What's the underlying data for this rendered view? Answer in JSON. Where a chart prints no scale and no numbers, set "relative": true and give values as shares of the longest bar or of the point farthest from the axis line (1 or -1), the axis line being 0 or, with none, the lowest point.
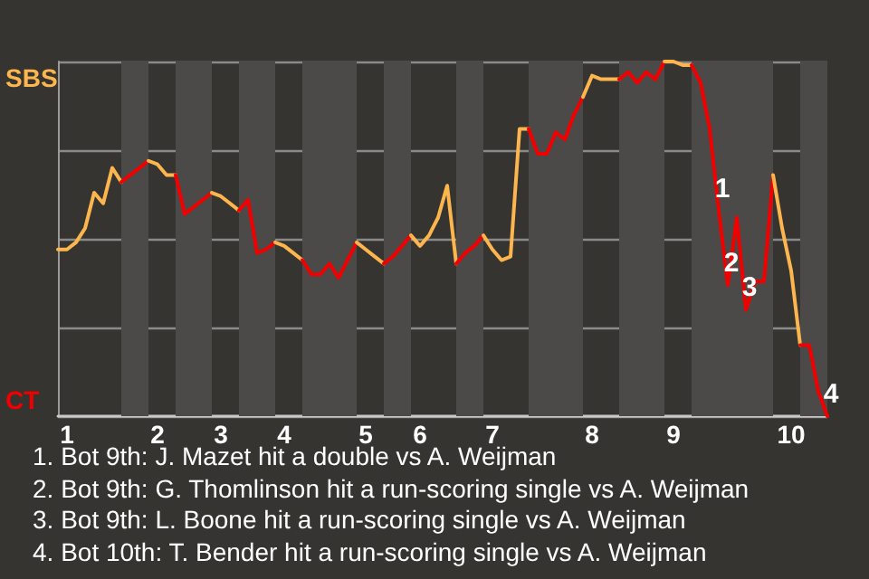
{
  "chart_data": {
    "type": "line",
    "relative": true,
    "categories": [
      null,
      "1",
      null,
      null,
      null,
      null,
      null,
      null,
      null,
      null,
      null,
      "2",
      null,
      null,
      null,
      null,
      null,
      null,
      "3",
      null,
      null,
      null,
      null,
      null,
      null,
      "4",
      null,
      null,
      null,
      null,
      null,
      null,
      null,
      null,
      "5",
      null,
      null,
      null,
      null,
      null,
      "6",
      null,
      null,
      null,
      null,
      null,
      null,
      null,
      "7",
      null,
      null,
      null,
      null,
      null,
      null,
      null,
      null,
      null,
      null,
      "8",
      null,
      null,
      null,
      null,
      null,
      null,
      null,
      null,
      "9",
      null,
      null,
      null,
      null,
      null,
      null,
      null,
      null,
      null,
      null,
      null,
      null,
      "10",
      null,
      null,
      null,
      null
    ],
    "grid": "y",
    "marker": "none",
    "series": [
      {
        "name": "SBS",
        "color": "#fdb54e",
        "values": [
          0.47,
          0.47,
          0.49,
          0.53,
          0.63,
          0.6,
          0.7,
          0.66,
          null,
          null,
          null,
          null,
          null,
          null,
          null,
          null,
          null,
          null,
          null,
          null,
          null,
          null,
          null,
          null,
          null,
          null,
          null,
          null,
          null,
          null,
          null,
          null,
          null,
          null,
          null,
          null,
          null,
          null,
          null,
          null,
          null,
          null,
          null,
          null,
          null,
          null,
          null,
          null,
          null,
          null,
          null,
          null,
          null,
          null,
          null,
          null,
          null,
          null,
          null,
          null,
          null,
          null,
          null,
          null,
          null,
          null,
          null,
          null,
          null,
          null,
          null,
          null,
          null,
          null,
          null,
          null,
          null,
          null,
          null,
          null,
          null,
          null,
          null,
          null,
          null,
          null
        ]
      },
      {
        "name": "CT",
        "color": "#f20000",
        "values": [
          null,
          null,
          null,
          null,
          null,
          null,
          null,
          0.66,
          0.68,
          0.7,
          0.72,
          null,
          null,
          null,
          null,
          null,
          null,
          null,
          null,
          null,
          null,
          null,
          null,
          null,
          null,
          null,
          null,
          null,
          null,
          null,
          null,
          null,
          null,
          null,
          null,
          null,
          null,
          null,
          null,
          null,
          null,
          null,
          null,
          null,
          null,
          null,
          null,
          null,
          null,
          null,
          null,
          null,
          null,
          null,
          null,
          null,
          null,
          null,
          null,
          null,
          null,
          null,
          null,
          null,
          null,
          null,
          null,
          null,
          null,
          null,
          null,
          null,
          null,
          null,
          null,
          null,
          null,
          null,
          null,
          null,
          null,
          null,
          null,
          null,
          null,
          null
        ]
      },
      {
        "color": "#fdb54e",
        "values": [
          null,
          null,
          null,
          null,
          null,
          null,
          null,
          null,
          null,
          null,
          0.72,
          0.71,
          0.68,
          0.68,
          null,
          null,
          null,
          null,
          null,
          null,
          null,
          null,
          null,
          null,
          null,
          null,
          null,
          null,
          null,
          null,
          null,
          null,
          null,
          null,
          null,
          null,
          null,
          null,
          null,
          null,
          null,
          null,
          null,
          null,
          null,
          null,
          null,
          null,
          null,
          null,
          null,
          null,
          null,
          null,
          null,
          null,
          null,
          null,
          null,
          null,
          null,
          null,
          null,
          null,
          null,
          null,
          null,
          null,
          null,
          null,
          null,
          null,
          null,
          null,
          null,
          null,
          null,
          null,
          null,
          null,
          null,
          null,
          null,
          null,
          null,
          null
        ]
      },
      {
        "color": "#f20000",
        "values": [
          null,
          null,
          null,
          null,
          null,
          null,
          null,
          null,
          null,
          null,
          null,
          null,
          null,
          0.68,
          0.57,
          0.59,
          0.61,
          0.63,
          null,
          null,
          null,
          null,
          null,
          null,
          null,
          null,
          null,
          null,
          null,
          null,
          null,
          null,
          null,
          null,
          null,
          null,
          null,
          null,
          null,
          null,
          null,
          null,
          null,
          null,
          null,
          null,
          null,
          null,
          null,
          null,
          null,
          null,
          null,
          null,
          null,
          null,
          null,
          null,
          null,
          null,
          null,
          null,
          null,
          null,
          null,
          null,
          null,
          null,
          null,
          null,
          null,
          null,
          null,
          null,
          null,
          null,
          null,
          null,
          null,
          null,
          null,
          null,
          null,
          null,
          null,
          null
        ]
      },
      {
        "color": "#fdb54e",
        "values": [
          null,
          null,
          null,
          null,
          null,
          null,
          null,
          null,
          null,
          null,
          null,
          null,
          null,
          null,
          null,
          null,
          null,
          0.63,
          0.62,
          0.6,
          0.58,
          null,
          null,
          null,
          null,
          null,
          null,
          null,
          null,
          null,
          null,
          null,
          null,
          null,
          null,
          null,
          null,
          null,
          null,
          null,
          null,
          null,
          null,
          null,
          null,
          null,
          null,
          null,
          null,
          null,
          null,
          null,
          null,
          null,
          null,
          null,
          null,
          null,
          null,
          null,
          null,
          null,
          null,
          null,
          null,
          null,
          null,
          null,
          null,
          null,
          null,
          null,
          null,
          null,
          null,
          null,
          null,
          null,
          null,
          null,
          null,
          null,
          null,
          null,
          null,
          null
        ]
      },
      {
        "color": "#f20000",
        "values": [
          null,
          null,
          null,
          null,
          null,
          null,
          null,
          null,
          null,
          null,
          null,
          null,
          null,
          null,
          null,
          null,
          null,
          null,
          null,
          null,
          0.58,
          0.61,
          0.46,
          0.47,
          0.49,
          null,
          null,
          null,
          null,
          null,
          null,
          null,
          null,
          null,
          null,
          null,
          null,
          null,
          null,
          null,
          null,
          null,
          null,
          null,
          null,
          null,
          null,
          null,
          null,
          null,
          null,
          null,
          null,
          null,
          null,
          null,
          null,
          null,
          null,
          null,
          null,
          null,
          null,
          null,
          null,
          null,
          null,
          null,
          null,
          null,
          null,
          null,
          null,
          null,
          null,
          null,
          null,
          null,
          null,
          null,
          null,
          null,
          null,
          null,
          null,
          null
        ]
      },
      {
        "color": "#fdb54e",
        "values": [
          null,
          null,
          null,
          null,
          null,
          null,
          null,
          null,
          null,
          null,
          null,
          null,
          null,
          null,
          null,
          null,
          null,
          null,
          null,
          null,
          null,
          null,
          null,
          null,
          0.49,
          0.48,
          0.46,
          0.44,
          null,
          null,
          null,
          null,
          null,
          null,
          null,
          null,
          null,
          null,
          null,
          null,
          null,
          null,
          null,
          null,
          null,
          null,
          null,
          null,
          null,
          null,
          null,
          null,
          null,
          null,
          null,
          null,
          null,
          null,
          null,
          null,
          null,
          null,
          null,
          null,
          null,
          null,
          null,
          null,
          null,
          null,
          null,
          null,
          null,
          null,
          null,
          null,
          null,
          null,
          null,
          null,
          null,
          null,
          null,
          null,
          null,
          null
        ]
      },
      {
        "color": "#f20000",
        "values": [
          null,
          null,
          null,
          null,
          null,
          null,
          null,
          null,
          null,
          null,
          null,
          null,
          null,
          null,
          null,
          null,
          null,
          null,
          null,
          null,
          null,
          null,
          null,
          null,
          null,
          null,
          null,
          0.44,
          0.4,
          0.4,
          0.43,
          0.39,
          0.44,
          0.49,
          null,
          null,
          null,
          null,
          null,
          null,
          null,
          null,
          null,
          null,
          null,
          null,
          null,
          null,
          null,
          null,
          null,
          null,
          null,
          null,
          null,
          null,
          null,
          null,
          null,
          null,
          null,
          null,
          null,
          null,
          null,
          null,
          null,
          null,
          null,
          null,
          null,
          null,
          null,
          null,
          null,
          null,
          null,
          null,
          null,
          null,
          null,
          null,
          null,
          null,
          null,
          null
        ]
      },
      {
        "color": "#fdb54e",
        "values": [
          null,
          null,
          null,
          null,
          null,
          null,
          null,
          null,
          null,
          null,
          null,
          null,
          null,
          null,
          null,
          null,
          null,
          null,
          null,
          null,
          null,
          null,
          null,
          null,
          null,
          null,
          null,
          null,
          null,
          null,
          null,
          null,
          null,
          0.49,
          0.47,
          0.45,
          0.43,
          null,
          null,
          null,
          null,
          null,
          null,
          null,
          null,
          null,
          null,
          null,
          null,
          null,
          null,
          null,
          null,
          null,
          null,
          null,
          null,
          null,
          null,
          null,
          null,
          null,
          null,
          null,
          null,
          null,
          null,
          null,
          null,
          null,
          null,
          null,
          null,
          null,
          null,
          null,
          null,
          null,
          null,
          null,
          null,
          null,
          null,
          null,
          null,
          null
        ]
      },
      {
        "color": "#f20000",
        "values": [
          null,
          null,
          null,
          null,
          null,
          null,
          null,
          null,
          null,
          null,
          null,
          null,
          null,
          null,
          null,
          null,
          null,
          null,
          null,
          null,
          null,
          null,
          null,
          null,
          null,
          null,
          null,
          null,
          null,
          null,
          null,
          null,
          null,
          null,
          null,
          null,
          0.43,
          0.45,
          0.48,
          0.51,
          null,
          null,
          null,
          null,
          null,
          null,
          null,
          null,
          null,
          null,
          null,
          null,
          null,
          null,
          null,
          null,
          null,
          null,
          null,
          null,
          null,
          null,
          null,
          null,
          null,
          null,
          null,
          null,
          null,
          null,
          null,
          null,
          null,
          null,
          null,
          null,
          null,
          null,
          null,
          null,
          null,
          null,
          null,
          null,
          null,
          null
        ]
      },
      {
        "color": "#fdb54e",
        "values": [
          null,
          null,
          null,
          null,
          null,
          null,
          null,
          null,
          null,
          null,
          null,
          null,
          null,
          null,
          null,
          null,
          null,
          null,
          null,
          null,
          null,
          null,
          null,
          null,
          null,
          null,
          null,
          null,
          null,
          null,
          null,
          null,
          null,
          null,
          null,
          null,
          null,
          null,
          null,
          0.51,
          0.48,
          0.51,
          0.56,
          0.65,
          0.43,
          null,
          null,
          null,
          null,
          null,
          null,
          null,
          null,
          null,
          null,
          null,
          null,
          null,
          null,
          null,
          null,
          null,
          null,
          null,
          null,
          null,
          null,
          null,
          null,
          null,
          null,
          null,
          null,
          null,
          null,
          null,
          null,
          null,
          null,
          null,
          null,
          null,
          null,
          null,
          null,
          null
        ]
      },
      {
        "color": "#f20000",
        "values": [
          null,
          null,
          null,
          null,
          null,
          null,
          null,
          null,
          null,
          null,
          null,
          null,
          null,
          null,
          null,
          null,
          null,
          null,
          null,
          null,
          null,
          null,
          null,
          null,
          null,
          null,
          null,
          null,
          null,
          null,
          null,
          null,
          null,
          null,
          null,
          null,
          null,
          null,
          null,
          null,
          null,
          null,
          null,
          null,
          0.43,
          0.46,
          0.48,
          0.51,
          null,
          null,
          null,
          null,
          null,
          null,
          null,
          null,
          null,
          null,
          null,
          null,
          null,
          null,
          null,
          null,
          null,
          null,
          null,
          null,
          null,
          null,
          null,
          null,
          null,
          null,
          null,
          null,
          null,
          null,
          null,
          null,
          null,
          null,
          null,
          null,
          null,
          null
        ]
      },
      {
        "color": "#fdb54e",
        "values": [
          null,
          null,
          null,
          null,
          null,
          null,
          null,
          null,
          null,
          null,
          null,
          null,
          null,
          null,
          null,
          null,
          null,
          null,
          null,
          null,
          null,
          null,
          null,
          null,
          null,
          null,
          null,
          null,
          null,
          null,
          null,
          null,
          null,
          null,
          null,
          null,
          null,
          null,
          null,
          null,
          null,
          null,
          null,
          null,
          null,
          null,
          null,
          0.51,
          0.47,
          0.44,
          0.45,
          0.81,
          0.81,
          null,
          null,
          null,
          null,
          null,
          null,
          null,
          null,
          null,
          null,
          null,
          null,
          null,
          null,
          null,
          null,
          null,
          null,
          null,
          null,
          null,
          null,
          null,
          null,
          null,
          null,
          null,
          null,
          null,
          null,
          null,
          null,
          null
        ]
      },
      {
        "color": "#f20000",
        "values": [
          null,
          null,
          null,
          null,
          null,
          null,
          null,
          null,
          null,
          null,
          null,
          null,
          null,
          null,
          null,
          null,
          null,
          null,
          null,
          null,
          null,
          null,
          null,
          null,
          null,
          null,
          null,
          null,
          null,
          null,
          null,
          null,
          null,
          null,
          null,
          null,
          null,
          null,
          null,
          null,
          null,
          null,
          null,
          null,
          null,
          null,
          null,
          null,
          null,
          null,
          null,
          null,
          0.81,
          0.74,
          0.74,
          0.8,
          0.78,
          0.85,
          0.9,
          null,
          null,
          null,
          null,
          null,
          null,
          null,
          null,
          null,
          null,
          null,
          null,
          null,
          null,
          null,
          null,
          null,
          null,
          null,
          null,
          null,
          null,
          null,
          null,
          null,
          null,
          null
        ]
      },
      {
        "color": "#fdb54e",
        "values": [
          null,
          null,
          null,
          null,
          null,
          null,
          null,
          null,
          null,
          null,
          null,
          null,
          null,
          null,
          null,
          null,
          null,
          null,
          null,
          null,
          null,
          null,
          null,
          null,
          null,
          null,
          null,
          null,
          null,
          null,
          null,
          null,
          null,
          null,
          null,
          null,
          null,
          null,
          null,
          null,
          null,
          null,
          null,
          null,
          null,
          null,
          null,
          null,
          null,
          null,
          null,
          null,
          null,
          null,
          null,
          null,
          null,
          null,
          0.9,
          0.96,
          0.95,
          0.95,
          0.95,
          null,
          null,
          null,
          null,
          null,
          null,
          null,
          null,
          null,
          null,
          null,
          null,
          null,
          null,
          null,
          null,
          null,
          null,
          null,
          null,
          null,
          null,
          null
        ]
      },
      {
        "color": "#f20000",
        "values": [
          null,
          null,
          null,
          null,
          null,
          null,
          null,
          null,
          null,
          null,
          null,
          null,
          null,
          null,
          null,
          null,
          null,
          null,
          null,
          null,
          null,
          null,
          null,
          null,
          null,
          null,
          null,
          null,
          null,
          null,
          null,
          null,
          null,
          null,
          null,
          null,
          null,
          null,
          null,
          null,
          null,
          null,
          null,
          null,
          null,
          null,
          null,
          null,
          null,
          null,
          null,
          null,
          null,
          null,
          null,
          null,
          null,
          null,
          null,
          null,
          null,
          null,
          0.95,
          0.97,
          0.94,
          0.97,
          0.95,
          1,
          null,
          null,
          null,
          null,
          null,
          null,
          null,
          null,
          null,
          null,
          null,
          null,
          null,
          null,
          null,
          null,
          null,
          null
        ]
      },
      {
        "color": "#fdb54e",
        "values": [
          null,
          null,
          null,
          null,
          null,
          null,
          null,
          null,
          null,
          null,
          null,
          null,
          null,
          null,
          null,
          null,
          null,
          null,
          null,
          null,
          null,
          null,
          null,
          null,
          null,
          null,
          null,
          null,
          null,
          null,
          null,
          null,
          null,
          null,
          null,
          null,
          null,
          null,
          null,
          null,
          null,
          null,
          null,
          null,
          null,
          null,
          null,
          null,
          null,
          null,
          null,
          null,
          null,
          null,
          null,
          null,
          null,
          null,
          null,
          null,
          null,
          null,
          null,
          null,
          null,
          null,
          null,
          1,
          1,
          0.99,
          0.99,
          null,
          null,
          null,
          null,
          null,
          null,
          null,
          null,
          null,
          null,
          null,
          null,
          null,
          null,
          null
        ]
      },
      {
        "color": "#f20000",
        "values": [
          null,
          null,
          null,
          null,
          null,
          null,
          null,
          null,
          null,
          null,
          null,
          null,
          null,
          null,
          null,
          null,
          null,
          null,
          null,
          null,
          null,
          null,
          null,
          null,
          null,
          null,
          null,
          null,
          null,
          null,
          null,
          null,
          null,
          null,
          null,
          null,
          null,
          null,
          null,
          null,
          null,
          null,
          null,
          null,
          null,
          null,
          null,
          null,
          null,
          null,
          null,
          null,
          null,
          null,
          null,
          null,
          null,
          null,
          null,
          null,
          null,
          null,
          null,
          null,
          null,
          null,
          null,
          null,
          null,
          null,
          0.99,
          0.94,
          0.81,
          0.58,
          0.37,
          0.56,
          0.3,
          0.38,
          0.38,
          0.68,
          null,
          null,
          null,
          null,
          null,
          null
        ]
      },
      {
        "color": "#fdb54e",
        "values": [
          null,
          null,
          null,
          null,
          null,
          null,
          null,
          null,
          null,
          null,
          null,
          null,
          null,
          null,
          null,
          null,
          null,
          null,
          null,
          null,
          null,
          null,
          null,
          null,
          null,
          null,
          null,
          null,
          null,
          null,
          null,
          null,
          null,
          null,
          null,
          null,
          null,
          null,
          null,
          null,
          null,
          null,
          null,
          null,
          null,
          null,
          null,
          null,
          null,
          null,
          null,
          null,
          null,
          null,
          null,
          null,
          null,
          null,
          null,
          null,
          null,
          null,
          null,
          null,
          null,
          null,
          null,
          null,
          null,
          null,
          null,
          null,
          null,
          null,
          null,
          null,
          null,
          null,
          null,
          0.68,
          0.53,
          0.41,
          0.2,
          null,
          null,
          null
        ]
      },
      {
        "color": "#f20000",
        "values": [
          null,
          null,
          null,
          null,
          null,
          null,
          null,
          null,
          null,
          null,
          null,
          null,
          null,
          null,
          null,
          null,
          null,
          null,
          null,
          null,
          null,
          null,
          null,
          null,
          null,
          null,
          null,
          null,
          null,
          null,
          null,
          null,
          null,
          null,
          null,
          null,
          null,
          null,
          null,
          null,
          null,
          null,
          null,
          null,
          null,
          null,
          null,
          null,
          null,
          null,
          null,
          null,
          null,
          null,
          null,
          null,
          null,
          null,
          null,
          null,
          null,
          null,
          null,
          null,
          null,
          null,
          null,
          null,
          null,
          null,
          null,
          null,
          null,
          null,
          null,
          null,
          null,
          null,
          null,
          null,
          null,
          null,
          0.2,
          0.2,
          0.07,
          0
        ]
      }
    ],
    "annotations": [
      {
        "text": "1",
        "y": 0.58
      },
      {
        "text": "2",
        "y": 0.37
      },
      {
        "text": "3",
        "y": 0.3
      },
      {
        "text": "4",
        "y": 0
      },
      "1. Bot 9th: J. Mazet hit a double vs A. Weijman",
      "2. Bot 9th: G. Thomlinson hit a run-scoring single vs A. Weijman",
      "3. Bot 9th: L. Boone hit a run-scoring single vs A. Weijman",
      "4. Bot 10th: T. Bender hit a run-scoring single vs A. Weijman"
    ]
  }
}
